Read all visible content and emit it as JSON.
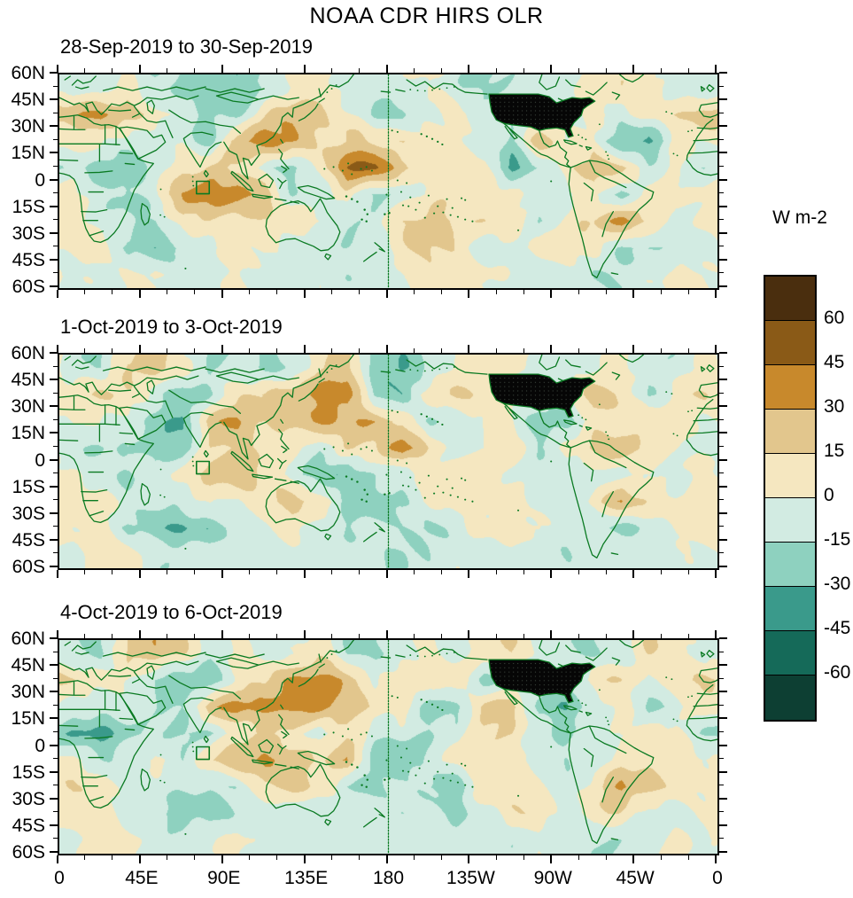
{
  "title": "NOAA CDR HIRS OLR",
  "colorbar": {
    "title": "W m-2",
    "tick_labels": [
      "60",
      "45",
      "30",
      "15",
      "0",
      "-15",
      "-30",
      "-45",
      "-60"
    ]
  },
  "axes": {
    "lat_labels": [
      "60N",
      "45N",
      "30N",
      "15N",
      "0",
      "15S",
      "30S",
      "45S",
      "60S"
    ],
    "lon_labels": [
      "0",
      "45E",
      "90E",
      "135E",
      "180",
      "135W",
      "90W",
      "45W",
      "0"
    ],
    "lat_major_step_deg": 15,
    "lat_minor_step_deg": 7.5,
    "lon_major_step_deg": 45,
    "lon_minor_step_deg": 15
  },
  "map_style": {
    "coastline_color": "#0a7a22",
    "missing_data": "contiguous United States shown as black stipple",
    "dateline": "dashed green line at 180",
    "roi_box": "green box approx 75E-82E, 0-7S"
  },
  "chart_data": {
    "type": "heatmap",
    "title": "NOAA CDR HIRS OLR",
    "units": "W m-2",
    "levels": [
      -60,
      -45,
      -30,
      -15,
      0,
      15,
      30,
      45,
      60
    ],
    "colors": [
      "#0d3f33",
      "#156a59",
      "#3a9a8b",
      "#8ed1bf",
      "#d2ebe2",
      "#f5e7c0",
      "#e2c68d",
      "#c8892c",
      "#8a5a17",
      "#4a2e0e"
    ],
    "lon_range": [
      0,
      360
    ],
    "lat_range": [
      -60,
      60
    ],
    "grid_rows_lat_centers": [
      52.5,
      37.5,
      22.5,
      7.5,
      -7.5,
      -22.5,
      -37.5,
      -52.5
    ],
    "grid_cols_lon_step_deg": 15,
    "panels": [
      {
        "subtitle": "28-Sep-2019 to 30-Sep-2019",
        "values": [
          [
            -10,
            -10,
            5,
            -15,
            -20,
            -25,
            -25,
            -15,
            5,
            10,
            -5,
            -10,
            -5,
            5,
            -10,
            -20,
            -15,
            -10,
            -5,
            5,
            10,
            5,
            -10,
            -10
          ],
          [
            25,
            35,
            25,
            10,
            -10,
            -20,
            -20,
            15,
            25,
            15,
            5,
            -15,
            -20,
            -5,
            5,
            -5,
            -5,
            -5,
            -5,
            10,
            -5,
            5,
            10,
            25
          ],
          [
            5,
            5,
            -5,
            -10,
            -5,
            -25,
            30,
            40,
            30,
            10,
            20,
            15,
            10,
            5,
            5,
            -5,
            -20,
            25,
            5,
            5,
            -30,
            -35,
            5,
            5
          ],
          [
            -10,
            -20,
            -25,
            -10,
            10,
            20,
            15,
            -10,
            -25,
            5,
            45,
            50,
            15,
            10,
            10,
            5,
            -35,
            -15,
            10,
            30,
            20,
            -10,
            5,
            -15
          ],
          [
            5,
            -10,
            -20,
            -5,
            35,
            45,
            40,
            25,
            -15,
            -10,
            10,
            -20,
            -10,
            5,
            10,
            5,
            5,
            -10,
            -5,
            5,
            -25,
            10,
            5,
            5
          ],
          [
            10,
            -5,
            -15,
            -20,
            10,
            15,
            10,
            10,
            15,
            5,
            -15,
            -10,
            15,
            25,
            15,
            10,
            5,
            -15,
            5,
            15,
            35,
            15,
            -5,
            5
          ],
          [
            5,
            10,
            -15,
            -25,
            -15,
            -5,
            5,
            5,
            -10,
            -15,
            -10,
            -5,
            10,
            15,
            10,
            -10,
            -5,
            5,
            10,
            10,
            -15,
            -20,
            -10,
            -5
          ],
          [
            -5,
            -5,
            5,
            5,
            -10,
            -10,
            5,
            -5,
            -10,
            -5,
            -10,
            -10,
            -5,
            5,
            5,
            5,
            -5,
            -10,
            -5,
            -15,
            -10,
            -5,
            5,
            5
          ]
        ]
      },
      {
        "subtitle": "1-Oct-2019 to 3-Oct-2019",
        "values": [
          [
            -10,
            -15,
            15,
            20,
            5,
            -15,
            -10,
            -20,
            -15,
            15,
            25,
            -25,
            -30,
            -10,
            5,
            10,
            5,
            -5,
            -10,
            -5,
            5,
            -15,
            -10,
            5
          ],
          [
            10,
            15,
            10,
            -5,
            -25,
            -15,
            10,
            20,
            30,
            35,
            40,
            -20,
            -25,
            10,
            15,
            10,
            -5,
            -5,
            -5,
            25,
            15,
            -15,
            5,
            15
          ],
          [
            5,
            -5,
            -10,
            -20,
            -35,
            25,
            30,
            15,
            25,
            30,
            25,
            30,
            15,
            -15,
            -10,
            5,
            5,
            -25,
            -25,
            5,
            10,
            10,
            5,
            -5
          ],
          [
            -10,
            -15,
            -10,
            -25,
            -20,
            15,
            20,
            10,
            5,
            -10,
            15,
            10,
            40,
            10,
            -5,
            -5,
            10,
            -15,
            5,
            20,
            25,
            15,
            5,
            -5
          ],
          [
            5,
            -10,
            -15,
            -10,
            10,
            25,
            30,
            15,
            -5,
            -25,
            -30,
            -15,
            -10,
            5,
            10,
            5,
            -5,
            -5,
            -10,
            -10,
            -5,
            5,
            -5,
            5
          ],
          [
            15,
            10,
            -10,
            -15,
            -10,
            5,
            -5,
            10,
            20,
            15,
            -20,
            -25,
            -15,
            5,
            10,
            5,
            5,
            -5,
            -10,
            5,
            30,
            10,
            5,
            5
          ],
          [
            5,
            5,
            -20,
            -25,
            -30,
            -25,
            -10,
            -5,
            10,
            -10,
            -15,
            -10,
            -10,
            -15,
            -10,
            5,
            10,
            5,
            -10,
            -15,
            -20,
            -10,
            5,
            5
          ],
          [
            -5,
            5,
            5,
            -10,
            -10,
            -5,
            -10,
            -10,
            -5,
            -10,
            -5,
            -10,
            -15,
            -10,
            -5,
            -10,
            -5,
            -10,
            -15,
            -10,
            -5,
            -10,
            -5,
            -5
          ]
        ]
      },
      {
        "subtitle": "4-Oct-2019 to 6-Oct-2019",
        "values": [
          [
            -10,
            -15,
            20,
            25,
            15,
            -10,
            5,
            -10,
            -5,
            10,
            -15,
            -20,
            -10,
            5,
            -10,
            10,
            15,
            -5,
            -10,
            -15,
            -10,
            15,
            10,
            -5
          ],
          [
            15,
            10,
            5,
            -20,
            -30,
            -25,
            5,
            15,
            30,
            40,
            30,
            -5,
            10,
            5,
            15,
            -20,
            -10,
            -5,
            -10,
            10,
            15,
            -10,
            15,
            20
          ],
          [
            -5,
            -10,
            -5,
            -10,
            -15,
            25,
            35,
            30,
            40,
            35,
            20,
            10,
            10,
            -20,
            -25,
            20,
            25,
            -20,
            -30,
            -10,
            10,
            -15,
            -10,
            10
          ],
          [
            -30,
            -35,
            -20,
            -10,
            -15,
            -15,
            5,
            15,
            10,
            -10,
            10,
            -10,
            -10,
            -15,
            -10,
            10,
            15,
            -10,
            -15,
            -10,
            5,
            10,
            5,
            -15
          ],
          [
            5,
            -15,
            -10,
            5,
            -10,
            15,
            30,
            35,
            25,
            15,
            30,
            -25,
            -30,
            -10,
            5,
            10,
            5,
            -5,
            -15,
            -10,
            5,
            10,
            5,
            5
          ],
          [
            15,
            10,
            -5,
            -10,
            -10,
            -15,
            -10,
            15,
            20,
            10,
            -15,
            -20,
            -10,
            -20,
            -25,
            15,
            10,
            5,
            -10,
            10,
            35,
            20,
            10,
            5
          ],
          [
            10,
            10,
            -5,
            -15,
            -25,
            -20,
            -10,
            -10,
            -15,
            -10,
            -5,
            -10,
            -15,
            -10,
            -15,
            -10,
            10,
            10,
            -10,
            15,
            10,
            -10,
            -5,
            5
          ],
          [
            -5,
            5,
            5,
            -5,
            -10,
            -5,
            5,
            -10,
            -5,
            -10,
            -10,
            -5,
            -10,
            -5,
            -10,
            -5,
            -10,
            -5,
            -10,
            -15,
            -10,
            -5,
            5,
            -5
          ]
        ]
      }
    ]
  }
}
